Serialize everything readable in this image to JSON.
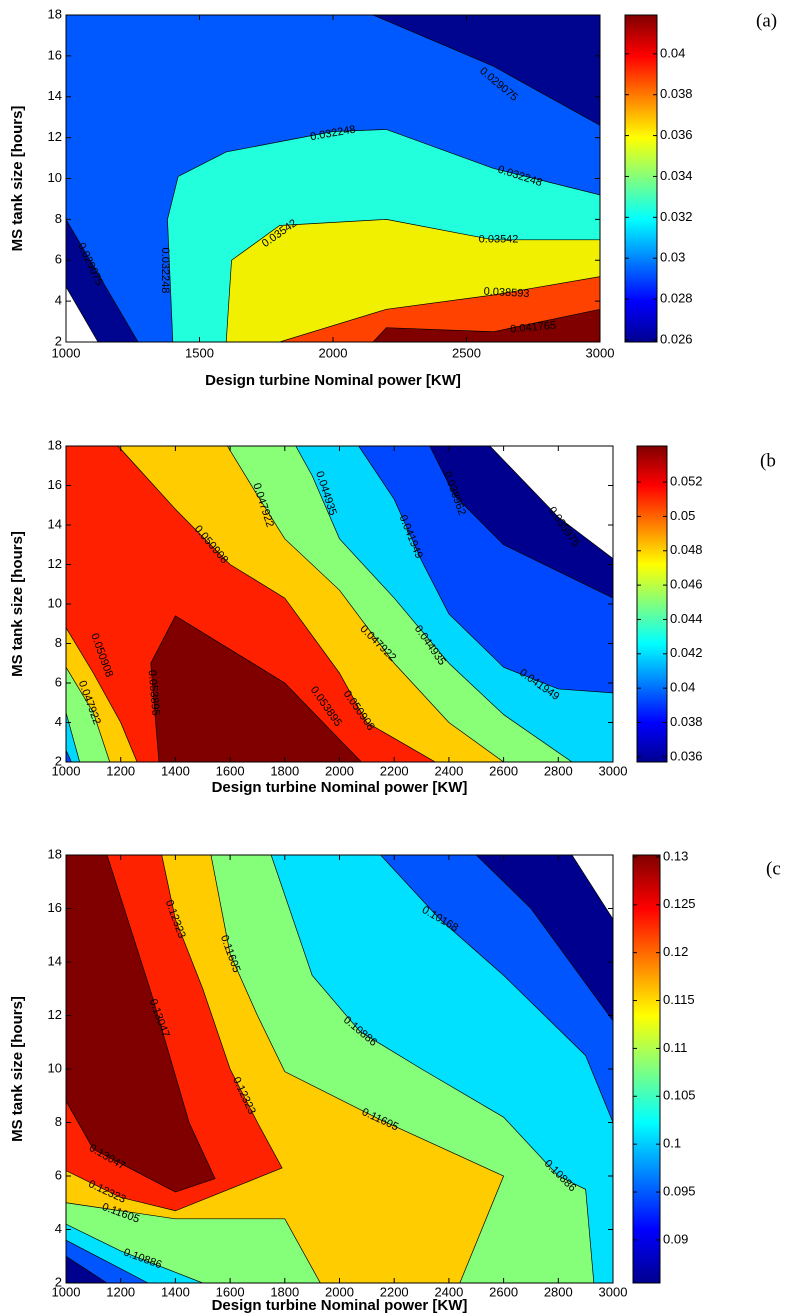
{
  "chart_data": [
    {
      "type": "contour",
      "panel_label": "(a)",
      "x_label": "Design turbine Nominal power [KW]",
      "y_label": "MS tank size [hours]",
      "xlim": [
        1000,
        3000
      ],
      "xticks": [
        1000,
        1500,
        2000,
        2500,
        3000
      ],
      "ylim": [
        2,
        18
      ],
      "yticks": [
        2,
        4,
        6,
        8,
        10,
        12,
        14,
        16,
        18
      ],
      "clim": [
        0.0259,
        0.0419
      ],
      "cticks": [
        0.026,
        0.028,
        0.03,
        0.032,
        0.034,
        0.036,
        0.038,
        0.04
      ],
      "regions": [
        {
          "level": 0.025902,
          "color": "#00058f",
          "points": [
            [
              1000,
              4.7
            ],
            [
              1000,
              18
            ],
            [
              3000,
              18
            ],
            [
              3000,
              2
            ],
            [
              1120,
              2
            ]
          ]
        },
        {
          "level": 0.029075,
          "color": "#0058ff",
          "points": [
            [
              1000,
              8
            ],
            [
              1000,
              18
            ],
            [
              2150,
              18
            ],
            [
              2600,
              15.5
            ],
            [
              3000,
              12.6
            ],
            [
              3000,
              2
            ],
            [
              1270,
              2
            ]
          ]
        },
        {
          "level": 0.032248,
          "color": "#22ffdd",
          "points": [
            [
              1400,
              2
            ],
            [
              1380,
              8
            ],
            [
              1420,
              10.1
            ],
            [
              1600,
              11.3
            ],
            [
              2000,
              12.3
            ],
            [
              2200,
              12.4
            ],
            [
              2600,
              10.5
            ],
            [
              3000,
              9.2
            ],
            [
              3000,
              2
            ]
          ]
        },
        {
          "level": 0.03542,
          "color": "#f0f000",
          "points": [
            [
              1600,
              2
            ],
            [
              1620,
              6
            ],
            [
              1800,
              7.7
            ],
            [
              2200,
              8
            ],
            [
              2600,
              7
            ],
            [
              3000,
              7
            ],
            [
              3000,
              2
            ]
          ]
        },
        {
          "level": 0.038593,
          "color": "#ff4200",
          "points": [
            [
              1800,
              2
            ],
            [
              2200,
              3.6
            ],
            [
              2600,
              4.3
            ],
            [
              3000,
              5.2
            ],
            [
              3000,
              2
            ]
          ]
        },
        {
          "level": 0.041765,
          "color": "#800000",
          "points": [
            [
              2150,
              2
            ],
            [
              2200,
              2.7
            ],
            [
              2600,
              2.5
            ],
            [
              3000,
              3.6
            ],
            [
              3000,
              2
            ]
          ]
        }
      ],
      "contour_labels": [
        {
          "value": 0.029075,
          "x": 2620,
          "y": 14.6
        },
        {
          "value": 0.032248,
          "x": 2000,
          "y": 12.2
        },
        {
          "value": 0.032248,
          "x": 2700,
          "y": 10.1
        },
        {
          "value": 0.03542,
          "x": 1800,
          "y": 7.3
        },
        {
          "value": 0.03542,
          "x": 2620,
          "y": 7.0
        },
        {
          "value": 0.038593,
          "x": 2650,
          "y": 4.4
        },
        {
          "value": 0.041765,
          "x": 2750,
          "y": 2.7
        },
        {
          "value": 0.032248,
          "x": 1370,
          "y": 5.5
        },
        {
          "value": 0.029075,
          "x": 1090,
          "y": 5.8
        }
      ]
    },
    {
      "type": "contour",
      "panel_label": "(b",
      "x_label": "Design turbine Nominal power [KW]",
      "y_label": "MS tank size [hours]",
      "xlim": [
        1000,
        3000
      ],
      "xticks": [
        1000,
        1200,
        1400,
        1600,
        1800,
        2000,
        2200,
        2400,
        2600,
        2800,
        3000
      ],
      "ylim": [
        2,
        18
      ],
      "yticks": [
        2,
        4,
        6,
        8,
        10,
        12,
        14,
        16,
        18
      ],
      "clim": [
        0.0357,
        0.0541
      ],
      "cticks": [
        0.036,
        0.038,
        0.04,
        0.042,
        0.044,
        0.046,
        0.048,
        0.05,
        0.052
      ],
      "regions": [
        {
          "level": 0.035975,
          "color": "#00008f",
          "points": [
            [
              1000,
              2
            ],
            [
              1000,
              18
            ],
            [
              2550,
              18
            ],
            [
              2800,
              14.4
            ],
            [
              3000,
              12.3
            ],
            [
              3000,
              2
            ]
          ]
        },
        {
          "level": 0.038962,
          "color": "#0048ff",
          "points": [
            [
              1000,
              2
            ],
            [
              1000,
              18
            ],
            [
              2330,
              18
            ],
            [
              2420,
              15.5
            ],
            [
              2600,
              13
            ],
            [
              3000,
              10.3
            ],
            [
              3000,
              2
            ]
          ]
        },
        {
          "level": 0.041949,
          "color": "#00d8ff",
          "points": [
            [
              1000,
              2.6
            ],
            [
              1000,
              18
            ],
            [
              2070,
              18
            ],
            [
              2200,
              15.3
            ],
            [
              2300,
              12.2
            ],
            [
              2400,
              9.5
            ],
            [
              2600,
              6.8
            ],
            [
              2800,
              5.7
            ],
            [
              3000,
              5.5
            ],
            [
              3000,
              2
            ],
            [
              1020,
              2
            ]
          ]
        },
        {
          "level": 0.044935,
          "color": "#88ff77",
          "points": [
            [
              1000,
              4.5
            ],
            [
              1000,
              18
            ],
            [
              1840,
              18
            ],
            [
              1900,
              16.5
            ],
            [
              2000,
              13.3
            ],
            [
              2200,
              10.3
            ],
            [
              2400,
              7
            ],
            [
              2600,
              4.4
            ],
            [
              2850,
              2
            ],
            [
              1050,
              2
            ]
          ]
        },
        {
          "level": 0.047922,
          "color": "#ffcc00",
          "points": [
            [
              1000,
              6.8
            ],
            [
              1000,
              18
            ],
            [
              1590,
              18
            ],
            [
              1700,
              15.5
            ],
            [
              1800,
              13.3
            ],
            [
              2000,
              10.7
            ],
            [
              2200,
              7
            ],
            [
              2400,
              4
            ],
            [
              2600,
              2
            ],
            [
              1160,
              2
            ],
            [
              1100,
              4.5
            ]
          ]
        },
        {
          "level": 0.050908,
          "color": "#ff2000",
          "points": [
            [
              1000,
              8.8
            ],
            [
              1000,
              18
            ],
            [
              1190,
              18
            ],
            [
              1400,
              14.8
            ],
            [
              1600,
              12
            ],
            [
              1800,
              10.3
            ],
            [
              2000,
              6.5
            ],
            [
              2100,
              4
            ],
            [
              2350,
              2
            ],
            [
              1260,
              2
            ],
            [
              1200,
              4
            ],
            [
              1100,
              6.5
            ]
          ]
        },
        {
          "level": 0.053895,
          "color": "#800000",
          "points": [
            [
              1340,
              2
            ],
            [
              1310,
              7
            ],
            [
              1400,
              9.4
            ],
            [
              1800,
              6
            ],
            [
              2080,
              2
            ]
          ]
        }
      ],
      "contour_labels": [
        {
          "value": 0.047922,
          "x": 1720,
          "y": 15.0
        },
        {
          "value": 0.044935,
          "x": 1950,
          "y": 15.6
        },
        {
          "value": 0.038962,
          "x": 2420,
          "y": 15.6
        },
        {
          "value": 0.035975,
          "x": 2820,
          "y": 13.9
        },
        {
          "value": 0.050908,
          "x": 1530,
          "y": 13.0
        },
        {
          "value": 0.041949,
          "x": 2260,
          "y": 13.4
        },
        {
          "value": 0.047922,
          "x": 2140,
          "y": 8.0
        },
        {
          "value": 0.044935,
          "x": 2330,
          "y": 7.9
        },
        {
          "value": 0.041949,
          "x": 2730,
          "y": 5.9
        },
        {
          "value": 0.053895,
          "x": 1320,
          "y": 5.5
        },
        {
          "value": 0.053895,
          "x": 1950,
          "y": 4.8
        },
        {
          "value": 0.050908,
          "x": 2070,
          "y": 4.6
        },
        {
          "value": 0.050908,
          "x": 1130,
          "y": 7.4
        },
        {
          "value": 0.047922,
          "x": 1085,
          "y": 5.0
        }
      ]
    },
    {
      "type": "contour",
      "panel_label": "(c",
      "x_label": "Design turbine Nominal power [KW]",
      "y_label": "MS tank size [hours]",
      "xlim": [
        1000,
        3000
      ],
      "xticks": [
        1000,
        1200,
        1400,
        1600,
        1800,
        2000,
        2200,
        2400,
        2600,
        2800,
        3000
      ],
      "ylim": [
        2,
        18
      ],
      "yticks": [
        2,
        4,
        6,
        8,
        10,
        12,
        14,
        16,
        18
      ],
      "clim": [
        0.0855,
        0.1302
      ],
      "cticks": [
        0.09,
        0.095,
        0.1,
        0.105,
        0.11,
        0.115,
        0.12,
        0.125,
        0.13
      ],
      "regions": [
        {
          "level": 0.08732,
          "color": "#00008f",
          "points": [
            [
              1000,
              2
            ],
            [
              1000,
              18
            ],
            [
              2850,
              18
            ],
            [
              3000,
              15.6
            ],
            [
              3000,
              2
            ]
          ]
        },
        {
          "level": 0.0945,
          "color": "#0055ff",
          "points": [
            [
              1000,
              3.0
            ],
            [
              1000,
              18
            ],
            [
              2500,
              18
            ],
            [
              2700,
              16
            ],
            [
              3000,
              11.8
            ],
            [
              3000,
              2
            ],
            [
              1150,
              2
            ]
          ]
        },
        {
          "level": 0.10168,
          "color": "#00e0ff",
          "points": [
            [
              1000,
              3.6
            ],
            [
              1000,
              18
            ],
            [
              2150,
              18
            ],
            [
              2367,
              15.6
            ],
            [
              2600,
              13.5
            ],
            [
              2900,
              10.5
            ],
            [
              3000,
              8
            ],
            [
              3000,
              2
            ],
            [
              1300,
              2
            ]
          ]
        },
        {
          "level": 0.10886,
          "color": "#85ff7a",
          "points": [
            [
              1000,
              4.2
            ],
            [
              1000,
              18
            ],
            [
              1750,
              18
            ],
            [
              1900,
              13.5
            ],
            [
              2075,
              11.4
            ],
            [
              2300,
              10
            ],
            [
              2600,
              8.2
            ],
            [
              2800,
              6
            ],
            [
              2900,
              5.5
            ],
            [
              2930,
              2
            ],
            [
              1500,
              2
            ],
            [
              1400,
              2.4
            ],
            [
              1200,
              3.2
            ]
          ]
        },
        {
          "level": 0.11605,
          "color": "#ffcc00",
          "points": [
            [
              1000,
              5.0
            ],
            [
              1000,
              18
            ],
            [
              1530,
              18
            ],
            [
              1600,
              14.3
            ],
            [
              1700,
              12
            ],
            [
              1800,
              9.9
            ],
            [
              2150,
              8.1
            ],
            [
              2600,
              6
            ],
            [
              2440,
              2
            ],
            [
              1930,
              2
            ],
            [
              1800,
              4.4
            ],
            [
              1400,
              4.4
            ]
          ]
        },
        {
          "level": 0.12323,
          "color": "#ff2200",
          "points": [
            [
              1000,
              6.2
            ],
            [
              1000,
              18
            ],
            [
              1350,
              18
            ],
            [
              1400,
              15.6
            ],
            [
              1500,
              13
            ],
            [
              1600,
              10
            ],
            [
              1700,
              8
            ],
            [
              1790,
              6.3
            ],
            [
              1400,
              4.7
            ],
            [
              1200,
              5.2
            ]
          ]
        },
        {
          "level": 0.13047,
          "color": "#800000",
          "points": [
            [
              1000,
              8.8
            ],
            [
              1000,
              18
            ],
            [
              1150,
              18
            ],
            [
              1310,
              12.9
            ],
            [
              1450,
              8
            ],
            [
              1545,
              5.9
            ],
            [
              1400,
              5.4
            ],
            [
              1100,
              7
            ]
          ]
        }
      ],
      "contour_labels": [
        {
          "value": 0.12323,
          "x": 1399,
          "y": 15.6
        },
        {
          "value": 0.11605,
          "x": 1600,
          "y": 14.3
        },
        {
          "value": 0.10886,
          "x": 2075,
          "y": 11.4
        },
        {
          "value": 0.10168,
          "x": 2367,
          "y": 15.6
        },
        {
          "value": 0.13047,
          "x": 1340,
          "y": 11.9
        },
        {
          "value": 0.12323,
          "x": 1650,
          "y": 9.0
        },
        {
          "value": 0.11605,
          "x": 2148,
          "y": 8.1
        },
        {
          "value": 0.10886,
          "x": 2806,
          "y": 6.0
        },
        {
          "value": 0.13047,
          "x": 1150,
          "y": 6.7
        },
        {
          "value": 0.12323,
          "x": 1150,
          "y": 5.4
        },
        {
          "value": 0.11605,
          "x": 1200,
          "y": 4.6
        },
        {
          "value": 0.10886,
          "x": 1280,
          "y": 2.9
        }
      ]
    }
  ]
}
